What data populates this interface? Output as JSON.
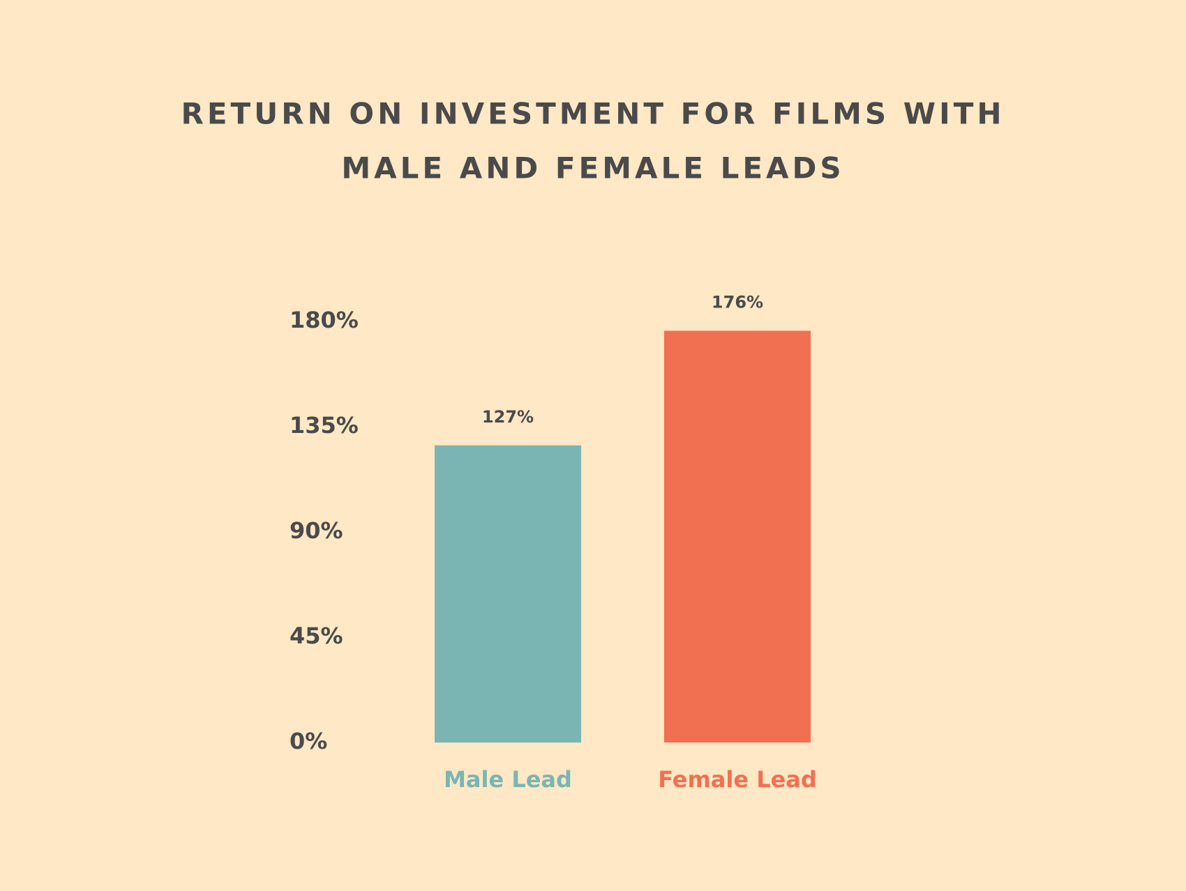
{
  "chart_data": {
    "type": "bar",
    "title": [
      "RETURN ON INVESTMENT FOR FILMS WITH",
      "MALE AND FEMALE LEADS"
    ],
    "categories": [
      "Male Lead",
      "Female Lead"
    ],
    "values": [
      127,
      176
    ],
    "value_labels": [
      "127%",
      "176%"
    ],
    "colors": [
      "#7ab5b3",
      "#f27052"
    ],
    "ylim": [
      0,
      180
    ],
    "yticks": [
      {
        "value": 0,
        "label": "0%"
      },
      {
        "value": 45,
        "label": "45%"
      },
      {
        "value": 90,
        "label": "90%"
      },
      {
        "value": 135,
        "label": "135%"
      },
      {
        "value": 180,
        "label": "180%"
      }
    ],
    "grid": false
  }
}
